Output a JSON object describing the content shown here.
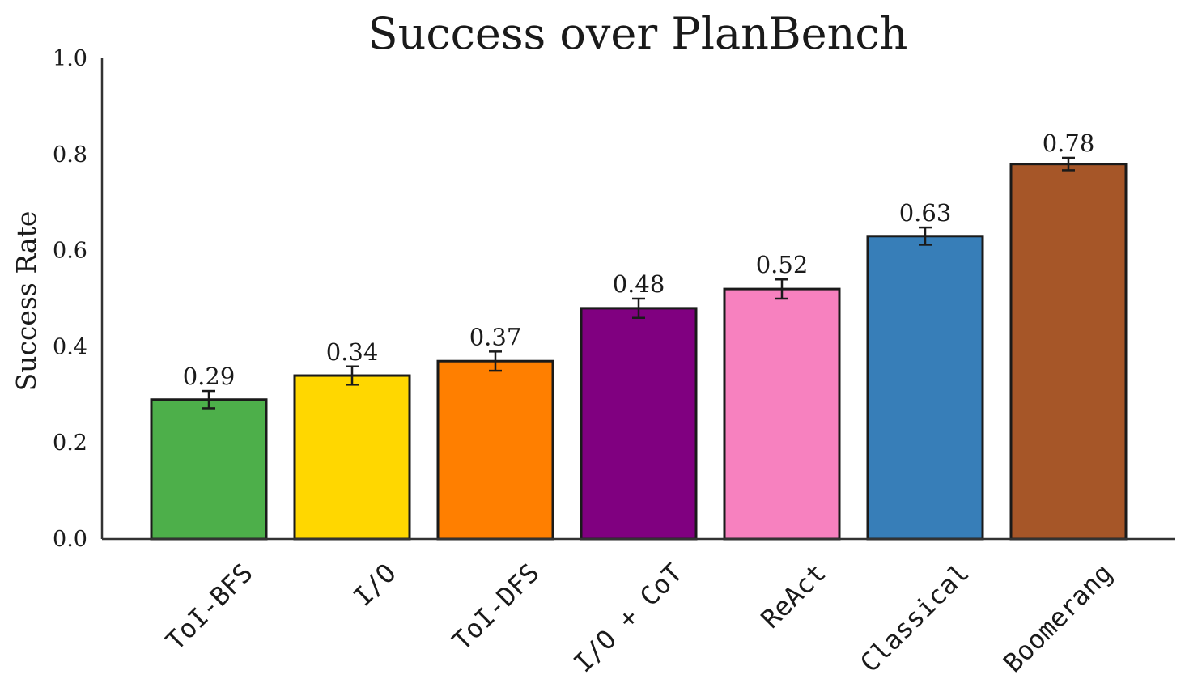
{
  "chart_data": {
    "type": "bar",
    "title": "Success over PlanBench",
    "ylabel": "Success Rate",
    "xlabel": "",
    "ylim": [
      0,
      1.0
    ],
    "yticks": [
      "0.0",
      "0.2",
      "0.4",
      "0.6",
      "0.8",
      "1.0"
    ],
    "grid": false,
    "categories": [
      "ToI-BFS",
      "I/O",
      "ToI-DFS",
      "I/O + CoT",
      "ReAct",
      "Classical",
      "Boomerang"
    ],
    "values": [
      0.29,
      0.34,
      0.37,
      0.48,
      0.52,
      0.63,
      0.78
    ],
    "value_labels": [
      "0.29",
      "0.34",
      "0.37",
      "0.48",
      "0.52",
      "0.63",
      "0.78"
    ],
    "error": [
      0.018,
      0.019,
      0.02,
      0.02,
      0.02,
      0.018,
      0.013
    ],
    "colors": [
      "#4daf4a",
      "#ffd700",
      "#ff7f00",
      "#800080",
      "#f781bf",
      "#377eb8",
      "#a65628"
    ]
  }
}
